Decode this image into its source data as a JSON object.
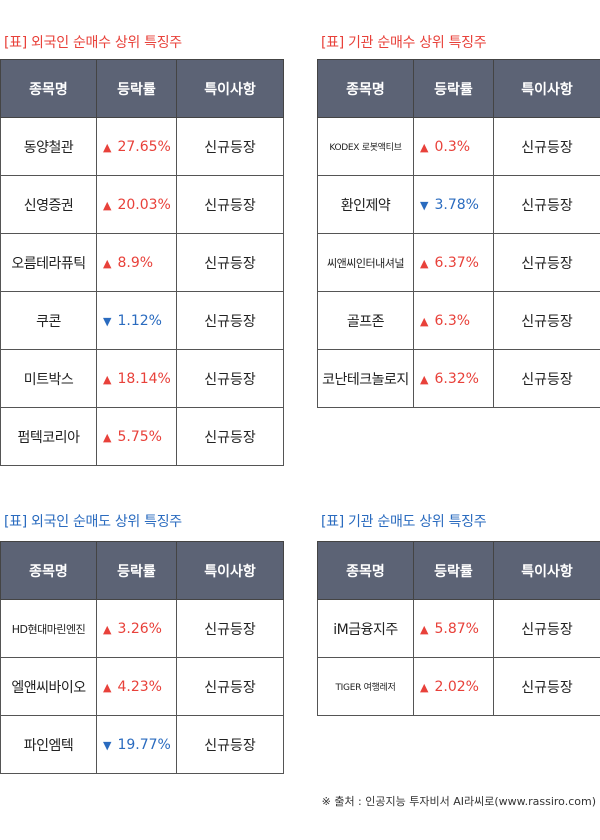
{
  "headers": [
    "종목명",
    "등락률",
    "특이사항"
  ],
  "colors": {
    "up": "#e8413a",
    "down": "#2a6bbf",
    "header_bg": "#5c6375"
  },
  "foreign_buy": {
    "title": "[표] 외국인 순매수 상위 특징주",
    "rows": [
      {
        "name": "동양철관",
        "dir": "up",
        "arrow": "▲",
        "change": "27.65%",
        "note": "신규등장"
      },
      {
        "name": "신영증권",
        "dir": "up",
        "arrow": "▲",
        "change": "20.03%",
        "note": "신규등장"
      },
      {
        "name": "오름테라퓨틱",
        "dir": "up",
        "arrow": "▲",
        "change": "8.9%",
        "note": "신규등장"
      },
      {
        "name": "쿠콘",
        "dir": "down",
        "arrow": "▼",
        "change": "1.12%",
        "note": "신규등장"
      },
      {
        "name": "미트박스",
        "dir": "up",
        "arrow": "▲",
        "change": "18.14%",
        "note": "신규등장"
      },
      {
        "name": "펌텍코리아",
        "dir": "up",
        "arrow": "▲",
        "change": "5.75%",
        "note": "신규등장"
      }
    ]
  },
  "inst_buy": {
    "title": "[표] 기관 순매수 상위 특징주",
    "rows": [
      {
        "name": "KODEX 로봇액티브",
        "dir": "up",
        "arrow": "▲",
        "change": "0.3%",
        "note": "신규등장"
      },
      {
        "name": "환인제약",
        "dir": "down",
        "arrow": "▼",
        "change": "3.78%",
        "note": "신규등장"
      },
      {
        "name": "씨앤씨인터내셔널",
        "dir": "up",
        "arrow": "▲",
        "change": "6.37%",
        "note": "신규등장"
      },
      {
        "name": "골프존",
        "dir": "up",
        "arrow": "▲",
        "change": "6.3%",
        "note": "신규등장"
      },
      {
        "name": "코난테크놀로지",
        "dir": "up",
        "arrow": "▲",
        "change": "6.32%",
        "note": "신규등장"
      }
    ]
  },
  "foreign_sell": {
    "title": "[표] 외국인 순매도 상위 특징주",
    "rows": [
      {
        "name": "HD현대마린엔진",
        "dir": "up",
        "arrow": "▲",
        "change": "3.26%",
        "note": "신규등장"
      },
      {
        "name": "엘앤씨바이오",
        "dir": "up",
        "arrow": "▲",
        "change": "4.23%",
        "note": "신규등장"
      },
      {
        "name": "파인엠텍",
        "dir": "down",
        "arrow": "▼",
        "change": "19.77%",
        "note": "신규등장"
      }
    ]
  },
  "inst_sell": {
    "title": "[표] 기관 순매도 상위 특징주",
    "rows": [
      {
        "name": "iM금융지주",
        "dir": "up",
        "arrow": "▲",
        "change": "5.87%",
        "note": "신규등장"
      },
      {
        "name": "TIGER 여행레저",
        "dir": "up",
        "arrow": "▲",
        "change": "2.02%",
        "note": "신규등장"
      }
    ]
  },
  "footer": "※ 출처 : 인공지능 투자비서 AI라씨로(www.rassiro.com)"
}
